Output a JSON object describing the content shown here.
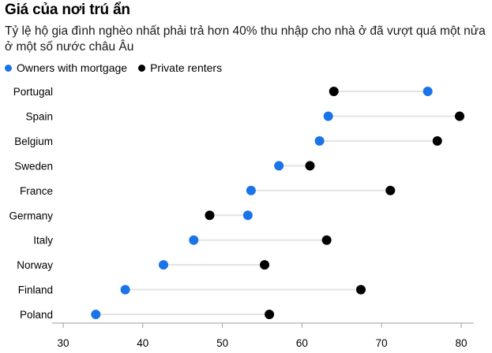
{
  "title": "Giá của nơi trú ẩn",
  "subtitle": "Tỷ lệ hộ gia đình nghèo nhất phải trả hơn 40% thu nhập cho nhà ở đã vượt quá một nửa ở một số nước châu Âu",
  "colors": {
    "owners": "#1a73e8",
    "renters": "#000000",
    "connector": "#e3e3e3",
    "axis": "#9e9e9e"
  },
  "chart_data": {
    "type": "scatter",
    "subtype": "dumbbell",
    "title": "Giá của nơi trú ẩn",
    "subtitle": "Tỷ lệ hộ gia đình nghèo nhất phải trả hơn 40% thu nhập cho nhà ở đã vượt quá một nửa ở một số nước châu Âu",
    "categories": [
      "Portugal",
      "Spain",
      "Belgium",
      "Sweden",
      "France",
      "Germany",
      "Italy",
      "Norway",
      "Finland",
      "Poland"
    ],
    "series": [
      {
        "name": "Owners with mortgage",
        "color": "#1a73e8",
        "values": [
          75.8,
          63.3,
          62.2,
          57.1,
          53.6,
          53.2,
          46.4,
          42.6,
          37.8,
          34.1
        ]
      },
      {
        "name": "Private renters",
        "color": "#000000",
        "values": [
          64.0,
          79.8,
          77.0,
          61.0,
          71.1,
          48.4,
          63.1,
          55.3,
          67.4,
          55.9
        ]
      }
    ],
    "xlim": [
      28,
      83
    ],
    "xticks": [
      30,
      40,
      50,
      60,
      70,
      80
    ],
    "legend_position": "top-left",
    "grid": false
  }
}
